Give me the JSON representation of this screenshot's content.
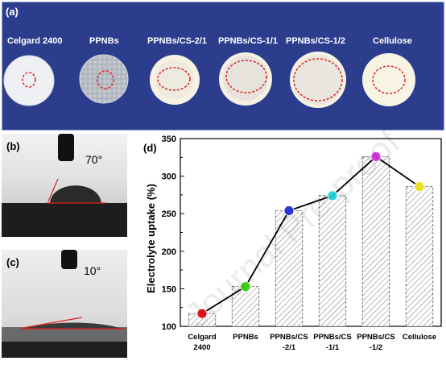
{
  "panel_a": {
    "label": "(a)",
    "samples": [
      {
        "name": "Celgard 2400",
        "disc": "white-small"
      },
      {
        "name": "PPNBs",
        "disc": "gray"
      },
      {
        "name": "PPNBs/CS-2/1",
        "disc": "cream"
      },
      {
        "name": "PPNBs/CS-1/1",
        "disc": "cream"
      },
      {
        "name": "PPNBs/CS-1/2",
        "disc": "cream"
      },
      {
        "name": "Cellulose",
        "disc": "cream"
      }
    ]
  },
  "panel_b": {
    "label": "(b)",
    "angle": "70°"
  },
  "panel_c": {
    "label": "(c)",
    "angle": "10°"
  },
  "panel_d": {
    "label": "(d)"
  },
  "watermark": "Journal Pre-proof",
  "chart_data": {
    "type": "bar",
    "categories": [
      [
        "Celgard",
        "2400"
      ],
      [
        "PPNBs"
      ],
      [
        "PPNBs/CS",
        "-2/1"
      ],
      [
        "PPNBs/CS",
        "-1/1"
      ],
      [
        "PPNBs/CS",
        "-1/2"
      ],
      [
        "Cellulose"
      ]
    ],
    "values": [
      117,
      153,
      254,
      274,
      326,
      286
    ],
    "marker_colors": [
      "#e8141e",
      "#3ecf1a",
      "#2a35d6",
      "#25d6e0",
      "#d33ae0",
      "#e8e21e"
    ],
    "ylabel": "Electrolyte uptake (%)",
    "ylim": [
      100,
      350
    ],
    "yticks": [
      100,
      150,
      200,
      250,
      300,
      350
    ],
    "overlay": "line-with-markers",
    "bar_fill": "hatched"
  }
}
